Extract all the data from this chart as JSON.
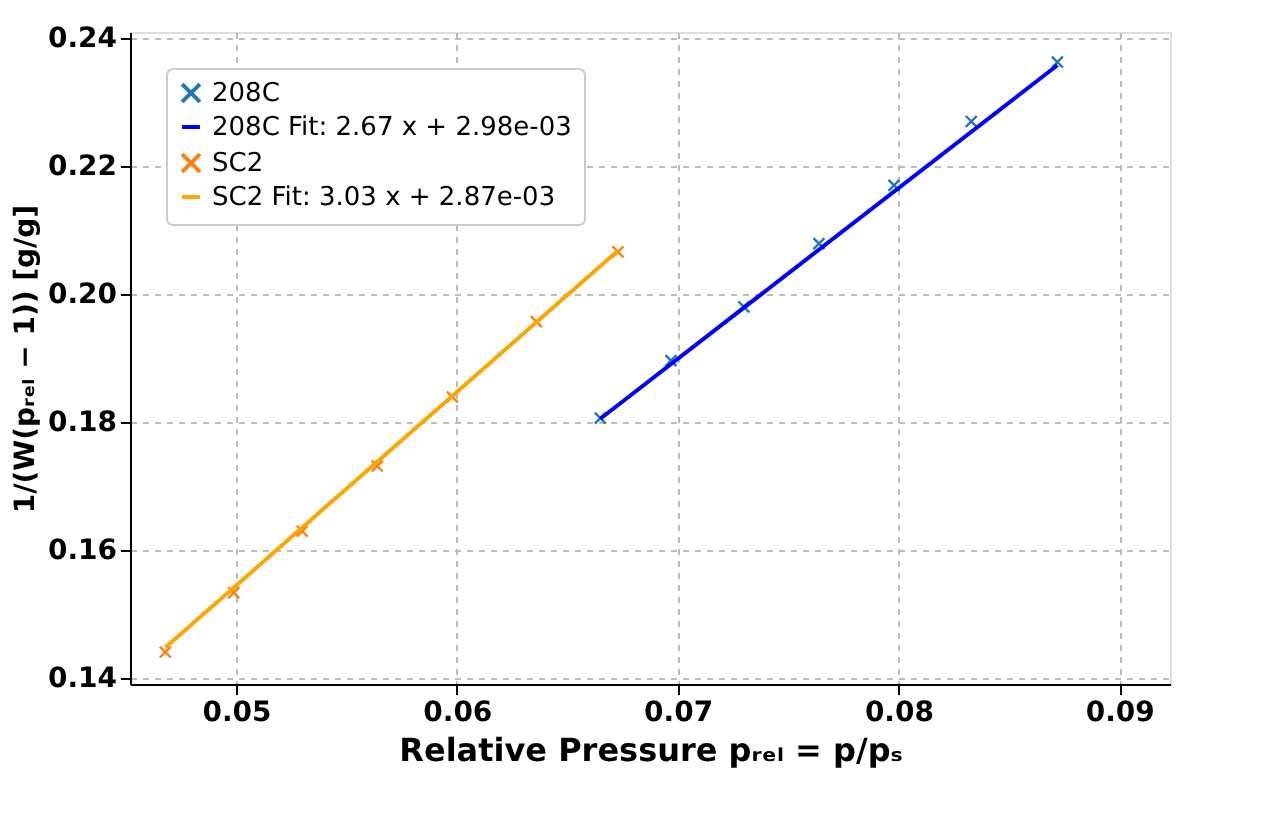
{
  "chart_data": {
    "type": "scatter",
    "xlabel": "Relative Pressure pᵣₑₗ = p/pₛ",
    "ylabel": "1/(W(pᵣₑₗ − 1)) [g/g]",
    "xlim": [
      0.0452,
      0.0923
    ],
    "ylim": [
      0.139,
      0.241
    ],
    "xticks": [
      0.05,
      0.06,
      0.07,
      0.08,
      0.09
    ],
    "yticks": [
      0.14,
      0.16,
      0.18,
      {
        "value": 0.2,
        "label": "0.20"
      },
      0.22,
      0.24
    ],
    "grid": true,
    "legend": "top left",
    "series": [
      {
        "name": "208C",
        "marker": "cross",
        "color": "#1f77b4",
        "x": [
          0.0665,
          0.0697,
          0.073,
          0.0764,
          0.0798,
          0.0833,
          0.0872
        ],
        "values": [
          0.1806,
          0.1896,
          0.198,
          0.2079,
          0.217,
          0.227,
          0.2363
        ]
      },
      {
        "name": "208C Fit: 2.67 x + 2.98e-03",
        "type": "line",
        "marker": "none",
        "line_style": "solid",
        "color": "#0000ff",
        "x": [
          0.0665,
          0.0872
        ],
        "values": [
          0.1805,
          0.2358
        ]
      },
      {
        "name": "SC2",
        "marker": "cross",
        "color": "#ff7f0e",
        "x": [
          0.0468,
          0.0499,
          0.053,
          0.0564,
          0.0598,
          0.0636,
          0.0673
        ],
        "values": [
          0.144,
          0.1533,
          0.1629,
          0.1731,
          0.1839,
          0.1957,
          0.2066
        ]
      },
      {
        "name": "SC2 Fit: 3.03 x + 2.87e-03",
        "type": "line",
        "marker": "none",
        "line_style": "solid",
        "color": "#ffa500",
        "x": [
          0.0468,
          0.0673
        ],
        "values": [
          0.1447,
          0.2068
        ]
      }
    ]
  }
}
